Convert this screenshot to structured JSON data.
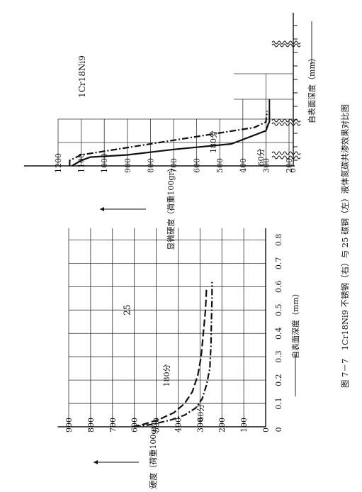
{
  "caption": "图 7－7　1Cr18Ni9 不锈钢（右）与 25 碳钢（左）液体氮碳共渗效果对比图",
  "chart_data": [
    {
      "type": "line",
      "material": "25",
      "xlabel": "自表面深度（mm）",
      "ylabel": "显微硬度（荷重100gr）",
      "x_ticks": [
        "0",
        "0.1",
        "0.2",
        "0.3",
        "0.4",
        "0.5",
        "0.6",
        "0.7",
        "0.8"
      ],
      "y_ticks": [
        "0",
        "100",
        "200",
        "300",
        "400",
        "500",
        "600",
        "700",
        "800",
        "900"
      ],
      "xlim": [
        0,
        0.85
      ],
      "ylim": [
        0,
        900
      ],
      "series": [
        {
          "name": "60分",
          "style": "dash-dot",
          "x": [
            0,
            0.01,
            0.03,
            0.05,
            0.08,
            0.12,
            0.18,
            0.25,
            0.35,
            0.45,
            0.55,
            0.62
          ],
          "y": [
            600,
            520,
            430,
            370,
            320,
            290,
            270,
            255,
            250,
            248,
            245,
            245
          ]
        },
        {
          "name": "180分",
          "style": "long-dash",
          "x": [
            0,
            0.01,
            0.03,
            0.06,
            0.1,
            0.15,
            0.22,
            0.3,
            0.4,
            0.5,
            0.6
          ],
          "y": [
            610,
            560,
            490,
            420,
            370,
            335,
            310,
            295,
            285,
            275,
            270
          ]
        }
      ]
    },
    {
      "type": "line",
      "material": "1Cr18Ni9",
      "xlabel": "自表面深度（mm）",
      "ylabel": "显微硬度（荷重100gr）",
      "x_ticks": [],
      "y_ticks": [
        "0",
        "200",
        "300",
        "400",
        "500",
        "600",
        "700",
        "800",
        "900",
        "1000",
        "1100",
        "1200"
      ],
      "ylim": [
        0,
        1200
      ],
      "series": [
        {
          "name": "60分",
          "style": "solid",
          "x": [
            0,
            0.5,
            0.8,
            1.0,
            1.5,
            2.0,
            3.2,
            3.8,
            4.0,
            5.0
          ],
          "y": [
            1140,
            1100,
            1060,
            900,
            700,
            450,
            300,
            290,
            285,
            285
          ]
        },
        {
          "name": "180分",
          "style": "dash-dot",
          "x": [
            0,
            0.5,
            1.0,
            2.0,
            3.0,
            3.5,
            4.0,
            5.0
          ],
          "y": [
            1150,
            1150,
            1100,
            800,
            500,
            350,
            300,
            295
          ]
        }
      ]
    }
  ]
}
